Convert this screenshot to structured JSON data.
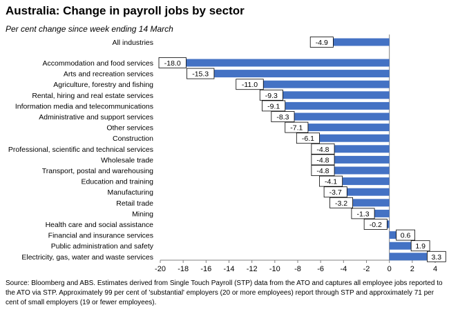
{
  "chart_data": {
    "type": "bar",
    "orientation": "horizontal",
    "title": "Australia:  Change in payroll jobs by sector",
    "subtitle": "Per cent change since week ending 14 March",
    "categories": [
      "All industries",
      "Accommodation and food services",
      "Arts and recreation services",
      "Agriculture, forestry and fishing",
      "Rental, hiring and real estate services",
      "Information media and telecommunications",
      "Administrative and support services",
      "Other services",
      "Construction",
      "Professional, scientific and technical services",
      "Wholesale trade",
      "Transport, postal and warehousing",
      "Education and training",
      "Manufacturing",
      "Retail trade",
      "Mining",
      "Health care and social assistance",
      "Financial and insurance services",
      "Public administration and safety",
      "Electricity, gas, water and waste services"
    ],
    "values": [
      -4.9,
      -18.0,
      -15.3,
      -11.0,
      -9.3,
      -9.1,
      -8.3,
      -7.1,
      -6.1,
      -4.8,
      -4.8,
      -4.8,
      -4.1,
      -3.7,
      -3.2,
      -1.3,
      -0.2,
      0.6,
      1.9,
      3.3
    ],
    "value_labels": [
      "-4.9",
      "-18.0",
      "-15.3",
      "-11.0",
      "-9.3",
      "-9.1",
      "-8.3",
      "-7.1",
      "-6.1",
      "-4.8",
      "-4.8",
      "-4.8",
      "-4.1",
      "-3.7",
      "-3.2",
      "-1.3",
      "-0.2",
      "0.6",
      "1.9",
      "3.3"
    ],
    "xlim": [
      -20,
      4
    ],
    "xticks": [
      -20,
      -18,
      -16,
      -14,
      -12,
      -10,
      -8,
      -6,
      -4,
      -2,
      0,
      2,
      4
    ],
    "gap_after_first": true,
    "grid": false,
    "legend": "none",
    "bar_color": "#4472C4"
  },
  "source": "Source: Bloomberg and ABS.  Estimates derived from Single Touch Payroll (STP) data from the ATO and captures all employee jobs reported to the ATO via STP.  Approximately 99 per cent of 'substantial' employers (20 or more employees) report through STP and approximately 71 per cent of small employers (19 or fewer employees)."
}
